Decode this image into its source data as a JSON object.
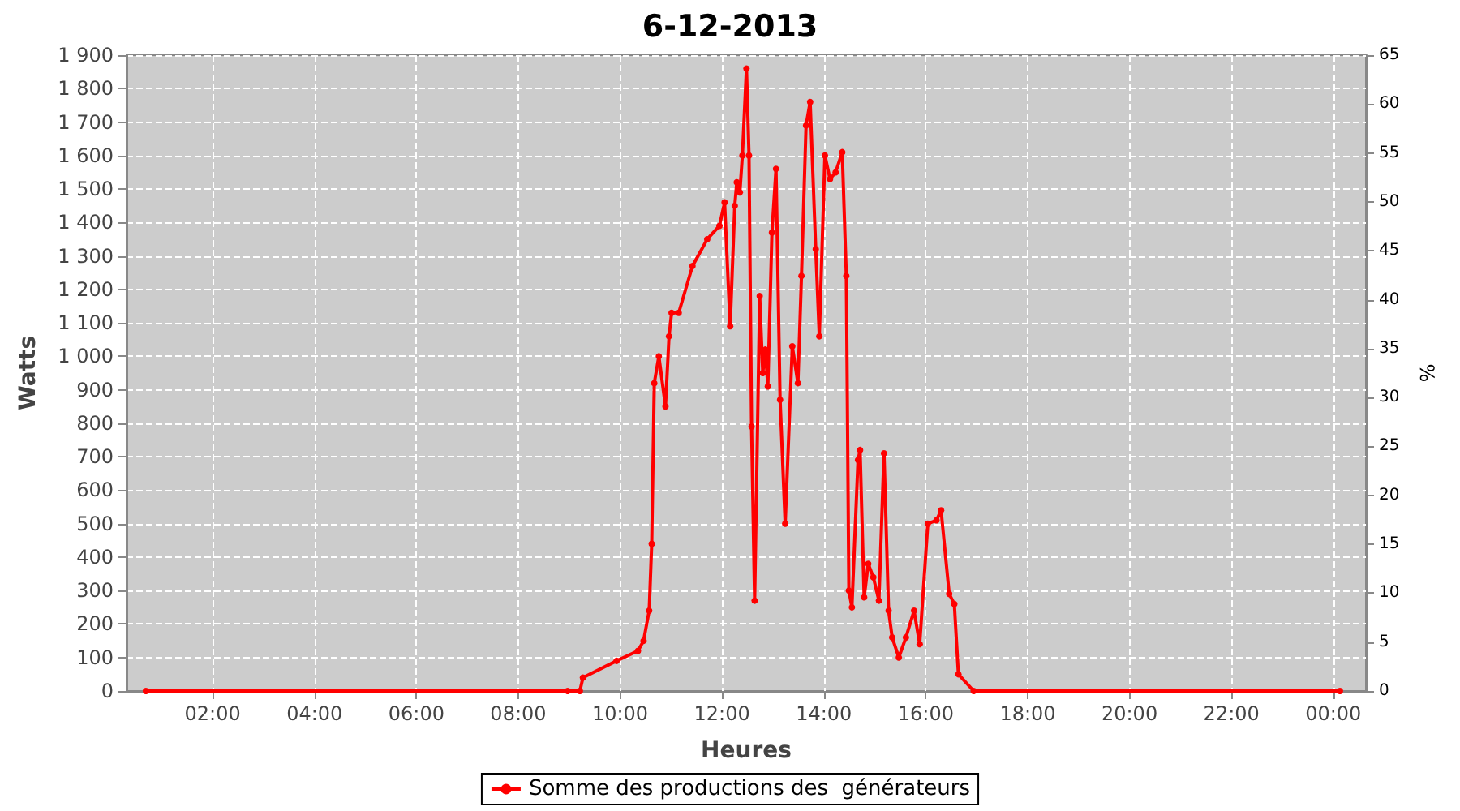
{
  "chart_data": {
    "type": "line",
    "title": "6-12-2013",
    "xlabel": "Heures",
    "ylabel": "Watts",
    "y2label": "%",
    "x": [
      0.69,
      8.97,
      9.21,
      9.27,
      9.93,
      10.35,
      10.46,
      10.57,
      10.62,
      10.67,
      10.76,
      10.89,
      10.96,
      11.01,
      11.15,
      11.42,
      11.71,
      11.95,
      12.05,
      12.16,
      12.25,
      12.29,
      12.35,
      12.4,
      12.48,
      12.53,
      12.58,
      12.64,
      12.74,
      12.8,
      12.85,
      12.9,
      12.98,
      13.06,
      13.14,
      13.24,
      13.38,
      13.49,
      13.56,
      13.65,
      13.73,
      13.84,
      13.91,
      14.02,
      14.12,
      14.23,
      14.36,
      14.44,
      14.49,
      14.55,
      14.67,
      14.71,
      14.79,
      14.87,
      14.97,
      15.08,
      15.18,
      15.27,
      15.34,
      15.47,
      15.61,
      15.77,
      15.88,
      16.04,
      16.21,
      16.3,
      16.46,
      16.56,
      16.64,
      16.94,
      24.13
    ],
    "series": [
      {
        "name": "Somme des productions des  générateurs",
        "color": "#ff0000",
        "values": [
          0,
          0,
          0,
          40,
          90,
          120,
          150,
          240,
          440,
          920,
          1000,
          850,
          1060,
          1130,
          1130,
          1270,
          1350,
          1390,
          1460,
          1090,
          1450,
          1520,
          1490,
          1600,
          1860,
          1600,
          790,
          270,
          1180,
          950,
          1020,
          910,
          1370,
          1560,
          870,
          500,
          1030,
          920,
          1240,
          1690,
          1760,
          1320,
          1060,
          1600,
          1530,
          1550,
          1610,
          1240,
          300,
          250,
          690,
          720,
          280,
          380,
          340,
          270,
          710,
          240,
          160,
          100,
          160,
          240,
          140,
          500,
          510,
          540,
          290,
          260,
          50,
          0,
          0
        ]
      }
    ],
    "xlim": [
      0.31,
      24.64
    ],
    "xticks": [
      {
        "value": 2,
        "label": "02:00"
      },
      {
        "value": 4,
        "label": "04:00"
      },
      {
        "value": 6,
        "label": "06:00"
      },
      {
        "value": 8,
        "label": "08:00"
      },
      {
        "value": 10,
        "label": "10:00"
      },
      {
        "value": 12,
        "label": "12:00"
      },
      {
        "value": 14,
        "label": "14:00"
      },
      {
        "value": 16,
        "label": "16:00"
      },
      {
        "value": 18,
        "label": "18:00"
      },
      {
        "value": 20,
        "label": "20:00"
      },
      {
        "value": 22,
        "label": "22:00"
      },
      {
        "value": 24,
        "label": "00:00"
      }
    ],
    "ylim": [
      0,
      1900
    ],
    "yticks": [
      0,
      100,
      200,
      300,
      400,
      500,
      600,
      700,
      800,
      900,
      {
        "value": 1000,
        "label": "1 000"
      },
      {
        "value": 1100,
        "label": "1 100"
      },
      {
        "value": 1200,
        "label": "1 200"
      },
      {
        "value": 1300,
        "label": "1 300"
      },
      {
        "value": 1400,
        "label": "1 400"
      },
      {
        "value": 1500,
        "label": "1 500"
      },
      {
        "value": 1600,
        "label": "1 600"
      },
      {
        "value": 1700,
        "label": "1 700"
      },
      {
        "value": 1800,
        "label": "1 800"
      },
      {
        "value": 1900,
        "label": "1 900"
      }
    ],
    "y2lim": [
      0,
      65
    ],
    "y2ticks": [
      0,
      5,
      10,
      15,
      20,
      25,
      30,
      35,
      40,
      45,
      50,
      55,
      60,
      65
    ],
    "grid": true,
    "legend": "bottom",
    "marker": "circle",
    "line_style": "solid"
  }
}
